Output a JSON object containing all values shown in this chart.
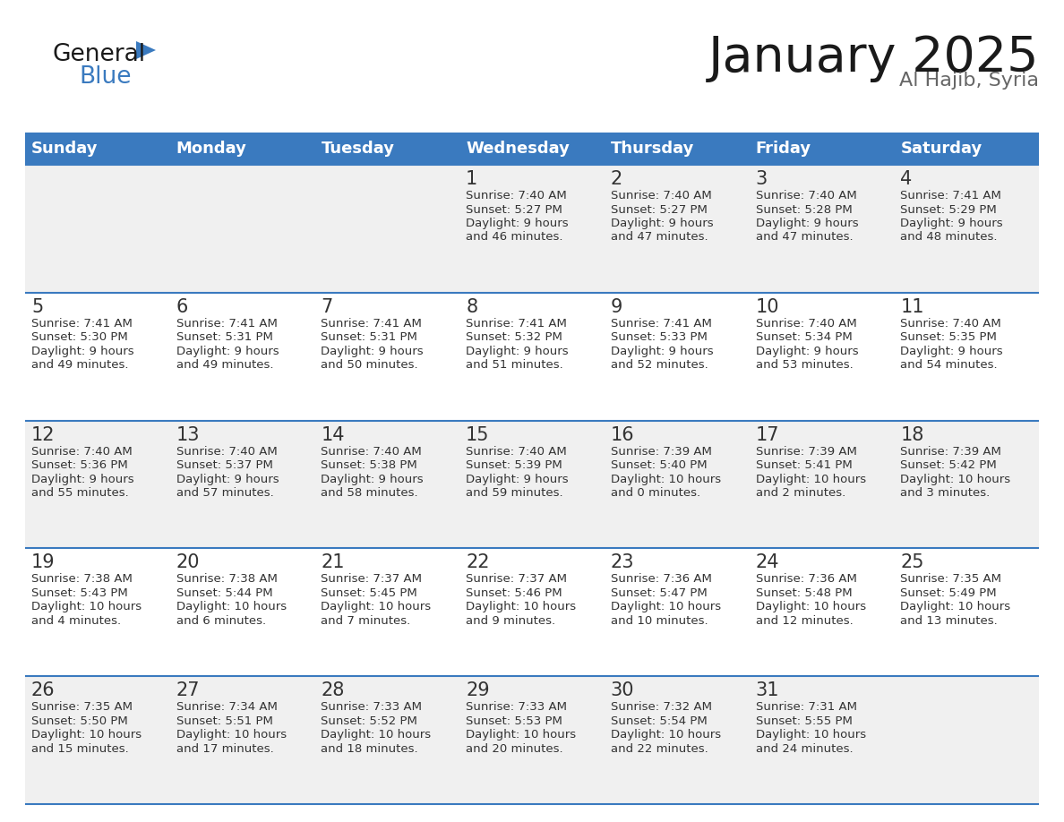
{
  "title": "January 2025",
  "subtitle": "Al Hajib, Syria",
  "days_of_week": [
    "Sunday",
    "Monday",
    "Tuesday",
    "Wednesday",
    "Thursday",
    "Friday",
    "Saturday"
  ],
  "header_bg": "#3a7abf",
  "header_text": "#ffffff",
  "row_bg_odd": "#f0f0f0",
  "row_bg_even": "#ffffff",
  "day_num_color": "#333333",
  "text_color": "#333333",
  "line_color": "#3a7abf",
  "calendar_data": [
    [
      {
        "day": "",
        "sunrise": "",
        "sunset": "",
        "daylight": ""
      },
      {
        "day": "",
        "sunrise": "",
        "sunset": "",
        "daylight": ""
      },
      {
        "day": "",
        "sunrise": "",
        "sunset": "",
        "daylight": ""
      },
      {
        "day": "1",
        "sunrise": "7:40 AM",
        "sunset": "5:27 PM",
        "daylight": "9 hours\nand 46 minutes."
      },
      {
        "day": "2",
        "sunrise": "7:40 AM",
        "sunset": "5:27 PM",
        "daylight": "9 hours\nand 47 minutes."
      },
      {
        "day": "3",
        "sunrise": "7:40 AM",
        "sunset": "5:28 PM",
        "daylight": "9 hours\nand 47 minutes."
      },
      {
        "day": "4",
        "sunrise": "7:41 AM",
        "sunset": "5:29 PM",
        "daylight": "9 hours\nand 48 minutes."
      }
    ],
    [
      {
        "day": "5",
        "sunrise": "7:41 AM",
        "sunset": "5:30 PM",
        "daylight": "9 hours\nand 49 minutes."
      },
      {
        "day": "6",
        "sunrise": "7:41 AM",
        "sunset": "5:31 PM",
        "daylight": "9 hours\nand 49 minutes."
      },
      {
        "day": "7",
        "sunrise": "7:41 AM",
        "sunset": "5:31 PM",
        "daylight": "9 hours\nand 50 minutes."
      },
      {
        "day": "8",
        "sunrise": "7:41 AM",
        "sunset": "5:32 PM",
        "daylight": "9 hours\nand 51 minutes."
      },
      {
        "day": "9",
        "sunrise": "7:41 AM",
        "sunset": "5:33 PM",
        "daylight": "9 hours\nand 52 minutes."
      },
      {
        "day": "10",
        "sunrise": "7:40 AM",
        "sunset": "5:34 PM",
        "daylight": "9 hours\nand 53 minutes."
      },
      {
        "day": "11",
        "sunrise": "7:40 AM",
        "sunset": "5:35 PM",
        "daylight": "9 hours\nand 54 minutes."
      }
    ],
    [
      {
        "day": "12",
        "sunrise": "7:40 AM",
        "sunset": "5:36 PM",
        "daylight": "9 hours\nand 55 minutes."
      },
      {
        "day": "13",
        "sunrise": "7:40 AM",
        "sunset": "5:37 PM",
        "daylight": "9 hours\nand 57 minutes."
      },
      {
        "day": "14",
        "sunrise": "7:40 AM",
        "sunset": "5:38 PM",
        "daylight": "9 hours\nand 58 minutes."
      },
      {
        "day": "15",
        "sunrise": "7:40 AM",
        "sunset": "5:39 PM",
        "daylight": "9 hours\nand 59 minutes."
      },
      {
        "day": "16",
        "sunrise": "7:39 AM",
        "sunset": "5:40 PM",
        "daylight": "10 hours\nand 0 minutes."
      },
      {
        "day": "17",
        "sunrise": "7:39 AM",
        "sunset": "5:41 PM",
        "daylight": "10 hours\nand 2 minutes."
      },
      {
        "day": "18",
        "sunrise": "7:39 AM",
        "sunset": "5:42 PM",
        "daylight": "10 hours\nand 3 minutes."
      }
    ],
    [
      {
        "day": "19",
        "sunrise": "7:38 AM",
        "sunset": "5:43 PM",
        "daylight": "10 hours\nand 4 minutes."
      },
      {
        "day": "20",
        "sunrise": "7:38 AM",
        "sunset": "5:44 PM",
        "daylight": "10 hours\nand 6 minutes."
      },
      {
        "day": "21",
        "sunrise": "7:37 AM",
        "sunset": "5:45 PM",
        "daylight": "10 hours\nand 7 minutes."
      },
      {
        "day": "22",
        "sunrise": "7:37 AM",
        "sunset": "5:46 PM",
        "daylight": "10 hours\nand 9 minutes."
      },
      {
        "day": "23",
        "sunrise": "7:36 AM",
        "sunset": "5:47 PM",
        "daylight": "10 hours\nand 10 minutes."
      },
      {
        "day": "24",
        "sunrise": "7:36 AM",
        "sunset": "5:48 PM",
        "daylight": "10 hours\nand 12 minutes."
      },
      {
        "day": "25",
        "sunrise": "7:35 AM",
        "sunset": "5:49 PM",
        "daylight": "10 hours\nand 13 minutes."
      }
    ],
    [
      {
        "day": "26",
        "sunrise": "7:35 AM",
        "sunset": "5:50 PM",
        "daylight": "10 hours\nand 15 minutes."
      },
      {
        "day": "27",
        "sunrise": "7:34 AM",
        "sunset": "5:51 PM",
        "daylight": "10 hours\nand 17 minutes."
      },
      {
        "day": "28",
        "sunrise": "7:33 AM",
        "sunset": "5:52 PM",
        "daylight": "10 hours\nand 18 minutes."
      },
      {
        "day": "29",
        "sunrise": "7:33 AM",
        "sunset": "5:53 PM",
        "daylight": "10 hours\nand 20 minutes."
      },
      {
        "day": "30",
        "sunrise": "7:32 AM",
        "sunset": "5:54 PM",
        "daylight": "10 hours\nand 22 minutes."
      },
      {
        "day": "31",
        "sunrise": "7:31 AM",
        "sunset": "5:55 PM",
        "daylight": "10 hours\nand 24 minutes."
      },
      {
        "day": "",
        "sunrise": "",
        "sunset": "",
        "daylight": ""
      }
    ]
  ],
  "logo_color_general": "#1a1a1a",
  "logo_color_blue": "#3a7abf",
  "logo_triangle_color": "#3a7abf",
  "title_fontsize": 40,
  "subtitle_fontsize": 16,
  "header_fontsize": 13,
  "daynum_fontsize": 15,
  "cell_fontsize": 9.5
}
